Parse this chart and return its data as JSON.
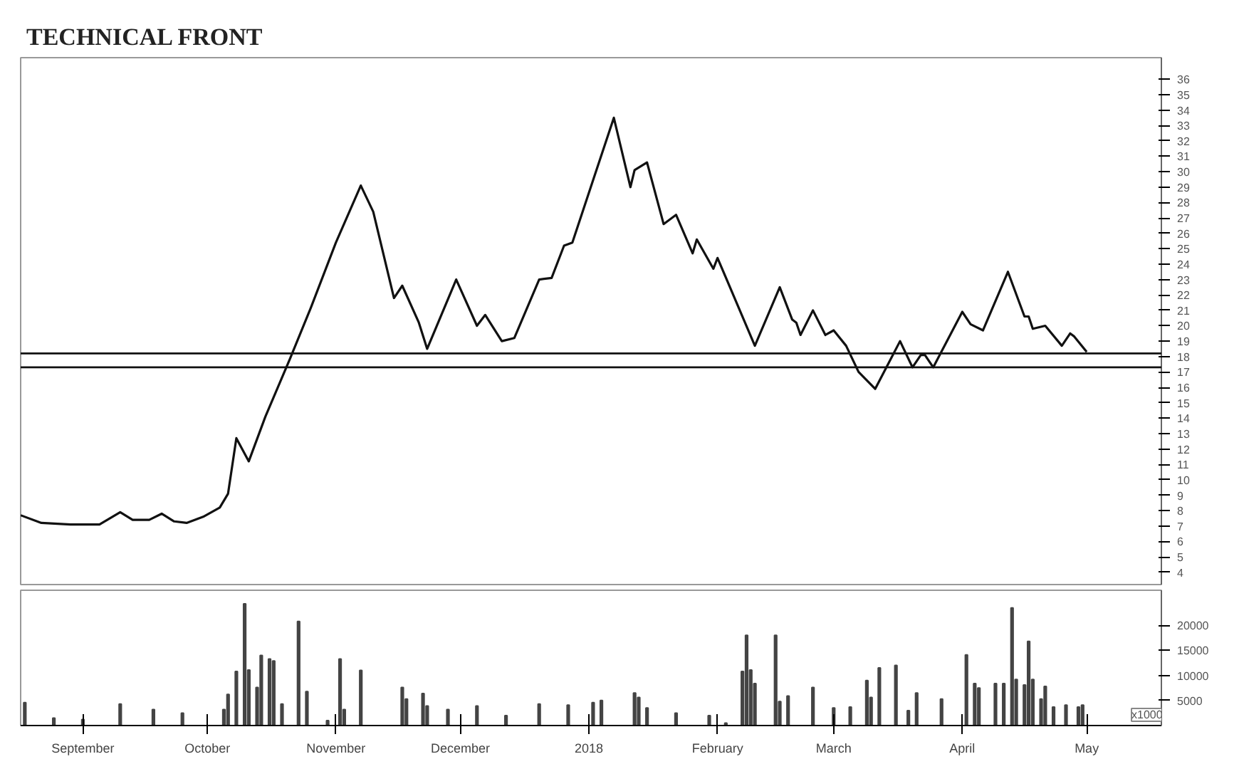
{
  "chart_data": [
    {
      "type": "line",
      "title": "TECHNICAL FRONT",
      "xlim": [
        "2017-08-17",
        "2018-05-19"
      ],
      "ylim": [
        3.2,
        37.4
      ],
      "yticks": [
        4,
        5,
        6,
        7,
        8,
        9,
        10,
        11,
        12,
        13,
        14,
        15,
        16,
        17,
        18,
        19,
        20,
        21,
        22,
        23,
        24,
        25,
        26,
        27,
        28,
        29,
        30,
        31,
        32,
        33,
        34,
        35,
        36
      ],
      "tick_labels": "y",
      "grid": false,
      "line_style": "solid",
      "series": [
        {
          "color": "#111111",
          "x": [
            "2017-08-17",
            "2017-08-22",
            "2017-08-29",
            "2017-09-05",
            "2017-09-10",
            "2017-09-13",
            "2017-09-17",
            "2017-09-20",
            "2017-09-23",
            "2017-09-26",
            "2017-09-30",
            "2017-10-04",
            "2017-10-06",
            "2017-10-08",
            "2017-10-11",
            "2017-10-15",
            "2017-10-21",
            "2017-10-26",
            "2017-11-01",
            "2017-11-07",
            "2017-11-10",
            "2017-11-15",
            "2017-11-17",
            "2017-11-21",
            "2017-11-23",
            "2017-11-30",
            "2017-12-05",
            "2017-12-07",
            "2017-12-11",
            "2017-12-14",
            "2017-12-20",
            "2017-12-23",
            "2017-12-26",
            "2017-12-28",
            "2018-01-07",
            "2018-01-11",
            "2018-01-12",
            "2018-01-15",
            "2018-01-19",
            "2018-01-22",
            "2018-01-26",
            "2018-01-27",
            "2018-01-31",
            "2018-02-01",
            "2018-02-10",
            "2018-02-16",
            "2018-02-19",
            "2018-02-20",
            "2018-02-21",
            "2018-02-24",
            "2018-02-27",
            "2018-03-01",
            "2018-03-04",
            "2018-03-07",
            "2018-03-11",
            "2018-03-17",
            "2018-03-20",
            "2018-03-22",
            "2018-03-23",
            "2018-03-25",
            "2018-04-01",
            "2018-04-03",
            "2018-04-06",
            "2018-04-12",
            "2018-04-16",
            "2018-04-17",
            "2018-04-18",
            "2018-04-21",
            "2018-04-25",
            "2018-04-27",
            "2018-04-28",
            "2018-05-01"
          ],
          "values": [
            7.7,
            7.2,
            7.1,
            7.1,
            7.9,
            7.4,
            7.4,
            7.8,
            7.3,
            7.2,
            7.6,
            8.2,
            9.1,
            12.7,
            11.2,
            14.1,
            17.9,
            21.2,
            25.4,
            29.1,
            27.4,
            21.8,
            22.6,
            20.2,
            18.5,
            23.0,
            20.0,
            20.7,
            19.0,
            19.2,
            23.0,
            23.1,
            25.2,
            25.4,
            33.5,
            29.0,
            30.1,
            30.6,
            26.6,
            27.2,
            24.7,
            25.6,
            23.7,
            24.4,
            18.7,
            22.5,
            20.4,
            20.2,
            19.4,
            21.0,
            19.4,
            19.7,
            18.7,
            17.0,
            15.9,
            19.0,
            17.3,
            18.1,
            18.1,
            17.3,
            20.9,
            20.1,
            19.7,
            23.5,
            20.6,
            20.6,
            19.8,
            20.0,
            18.7,
            19.5,
            19.3,
            18.3
          ]
        }
      ],
      "ref_lines": [
        {
          "axis": "y",
          "value": 18.2,
          "color": "#111111"
        },
        {
          "axis": "y",
          "value": 17.3,
          "color": "#111111"
        }
      ]
    },
    {
      "type": "bar",
      "xlim": [
        "2017-08-17",
        "2018-05-19"
      ],
      "ylim": [
        0,
        27000
      ],
      "yticks": [
        5000,
        10000,
        15000,
        20000
      ],
      "xticks": [
        {
          "value": "2017-09-01",
          "label": "September"
        },
        {
          "value": "2017-10-01",
          "label": "October"
        },
        {
          "value": "2017-11-01",
          "label": "November"
        },
        {
          "value": "2017-12-01",
          "label": "December"
        },
        {
          "value": "2018-01-01",
          "label": "2018"
        },
        {
          "value": "2018-02-01",
          "label": "February"
        },
        {
          "value": "2018-03-01",
          "label": "March"
        },
        {
          "value": "2018-04-01",
          "label": "April"
        },
        {
          "value": "2018-05-01",
          "label": "May"
        }
      ],
      "grid": false,
      "annotations": [
        "x1000"
      ],
      "series": [
        {
          "color": "#444444",
          "x": [
            "2017-08-18",
            "2017-08-25",
            "2017-09-01",
            "2017-09-10",
            "2017-09-18",
            "2017-09-25",
            "2017-10-05",
            "2017-10-06",
            "2017-10-08",
            "2017-10-10",
            "2017-10-11",
            "2017-10-13",
            "2017-10-14",
            "2017-10-16",
            "2017-10-17",
            "2017-10-19",
            "2017-10-23",
            "2017-10-25",
            "2017-10-30",
            "2017-11-02",
            "2017-11-03",
            "2017-11-07",
            "2017-11-17",
            "2017-11-18",
            "2017-11-22",
            "2017-11-23",
            "2017-11-28",
            "2017-12-05",
            "2017-12-12",
            "2017-12-20",
            "2017-12-27",
            "2018-01-02",
            "2018-01-04",
            "2018-01-12",
            "2018-01-13",
            "2018-01-15",
            "2018-01-22",
            "2018-01-30",
            "2018-02-03",
            "2018-02-07",
            "2018-02-08",
            "2018-02-09",
            "2018-02-10",
            "2018-02-15",
            "2018-02-16",
            "2018-02-18",
            "2018-02-24",
            "2018-03-01",
            "2018-03-05",
            "2018-03-09",
            "2018-03-10",
            "2018-03-12",
            "2018-03-16",
            "2018-03-19",
            "2018-03-21",
            "2018-03-27",
            "2018-04-02",
            "2018-04-04",
            "2018-04-05",
            "2018-04-09",
            "2018-04-11",
            "2018-04-13",
            "2018-04-14",
            "2018-04-16",
            "2018-04-17",
            "2018-04-18",
            "2018-04-20",
            "2018-04-21",
            "2018-04-23",
            "2018-04-26",
            "2018-04-29",
            "2018-04-30"
          ],
          "values": [
            4600,
            1500,
            1200,
            4300,
            3200,
            2500,
            3200,
            6200,
            10800,
            24300,
            11100,
            7600,
            14000,
            13300,
            12900,
            4300,
            20800,
            6800,
            1000,
            13300,
            3200,
            11000,
            7600,
            5300,
            6400,
            3900,
            3200,
            3900,
            2000,
            4300,
            4100,
            4600,
            5000,
            6500,
            5600,
            3500,
            2500,
            2000,
            500,
            10800,
            18000,
            11100,
            8400,
            18000,
            4800,
            5900,
            7600,
            3500,
            3700,
            9000,
            5600,
            11500,
            12000,
            3000,
            6500,
            5300,
            14100,
            8400,
            7500,
            8400,
            8400,
            23500,
            9200,
            8100,
            16800,
            9200,
            5300,
            7800,
            3700,
            4100,
            3700,
            4100
          ]
        }
      ]
    }
  ]
}
